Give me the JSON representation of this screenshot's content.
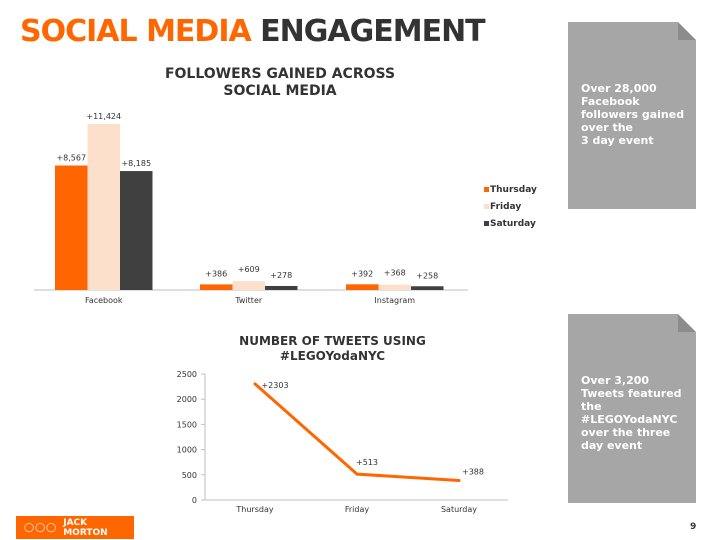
{
  "title": {
    "part1": "SOCIAL MEDIA",
    "part2": "ENGAGEMENT"
  },
  "colors": {
    "thursday": "#ff6600",
    "friday": "#fde0cc",
    "saturday": "#404040",
    "line": "#ff6600"
  },
  "chart_data": [
    {
      "type": "bar",
      "title": "FOLLOWERS GAINED ACROSS SOCIAL MEDIA",
      "categories": [
        "Facebook",
        "Twitter",
        "Instagram"
      ],
      "series": [
        {
          "name": "Thursday",
          "values": [
            8567,
            386,
            392
          ],
          "labels": [
            "+8,567",
            "+386",
            "+392"
          ]
        },
        {
          "name": "Friday",
          "values": [
            11424,
            609,
            368
          ],
          "labels": [
            "+11,424",
            "+609",
            "+368"
          ]
        },
        {
          "name": "Saturday",
          "values": [
            8185,
            278,
            258
          ],
          "labels": [
            "+8,185",
            "+278",
            "+258"
          ]
        }
      ],
      "legend": "right",
      "grid": false
    },
    {
      "type": "line",
      "title": "NUMBER OF TWEETS USING #LEGOYodaNYC",
      "categories": [
        "Thursday",
        "Friday",
        "Saturday"
      ],
      "values": [
        2303,
        513,
        388
      ],
      "labels": [
        "+2303",
        "+513",
        "+388"
      ],
      "ylim": [
        0,
        2500
      ],
      "yticks": [
        "0",
        "500",
        "1000",
        "1500",
        "2000",
        "2500"
      ],
      "grid": false
    }
  ],
  "cards": [
    {
      "text": "Over 28,000 Facebook followers gained over the",
      "text2": "3 day event"
    },
    {
      "text": "Over 3,200 Tweets featured the #LEGOYodaNYC over the three day event"
    }
  ],
  "footer": {
    "logo_text": "JACK MORTON",
    "page_number": "9"
  }
}
